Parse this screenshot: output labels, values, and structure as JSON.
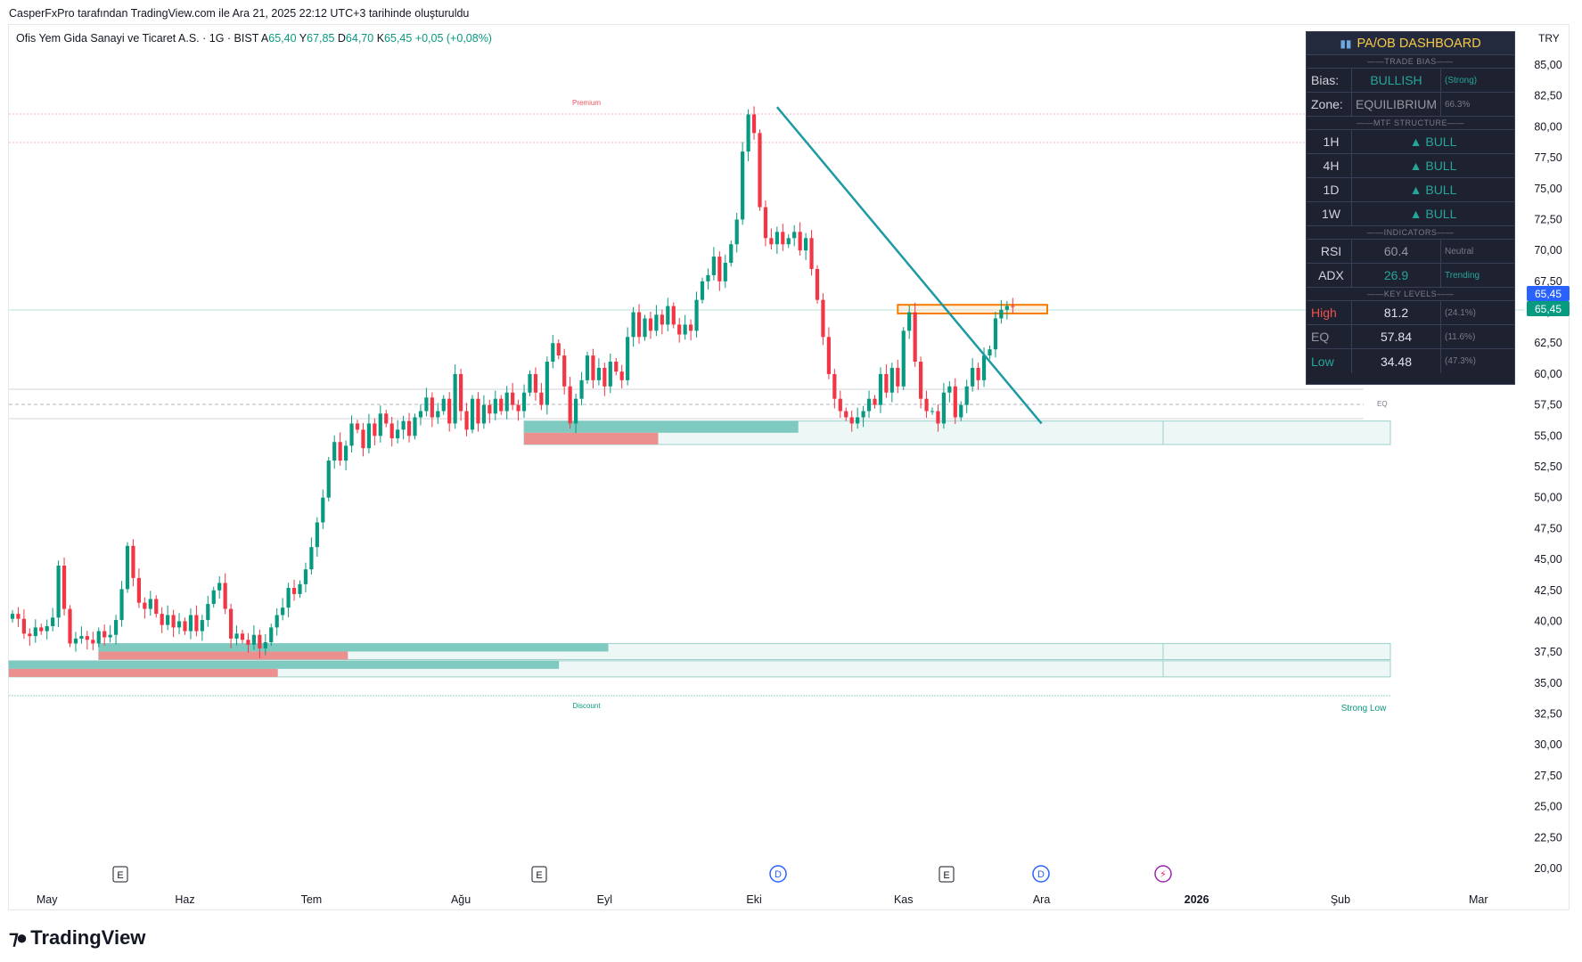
{
  "header": {
    "credit": "CasperFxPro tarafından TradingView.com ile Ara 21, 2025 22:12 UTC+3 tarihinde oluşturuldu"
  },
  "legend": {
    "name": "Ofis Yem Gida Sanayi ve Ticaret A.S. · 1G · BIST",
    "open_label": "A",
    "open": "65,40",
    "high_label": "Y",
    "high": "67,85",
    "low_label": "D",
    "low": "64,70",
    "close_label": "K",
    "close": "65,45",
    "change": "+0,05 (+0,08%)"
  },
  "currency": "TRY",
  "branding": {
    "logo": "TradingView"
  },
  "colors": {
    "up": "#089981",
    "down": "#f23645",
    "trendline": "#1b9aa3",
    "zone_teal": "#7fcac0",
    "zone_red": "#ec8f8f",
    "dashboard_bg": "#1e2130",
    "accent_gold": "#f7c948"
  },
  "chart_data": {
    "type": "candlestick",
    "title": "Ofis Yem Gida Sanayi ve Ticaret A.S. · 1G · BIST",
    "ylabel": "TRY",
    "ylim": [
      19,
      86
    ],
    "y_ticks": [
      "85,00",
      "82,50",
      "80,00",
      "77,50",
      "75,00",
      "72,50",
      "70,00",
      "67,50",
      "65,00",
      "62,50",
      "60,00",
      "57,50",
      "55,00",
      "52,50",
      "50,00",
      "47,50",
      "45,00",
      "42,50",
      "40,00",
      "37,50",
      "35,00",
      "32,50",
      "30,00",
      "27,50",
      "25,00",
      "22,50",
      "20,00"
    ],
    "x_labels": [
      {
        "label": "May",
        "bar": 6
      },
      {
        "label": "Haz",
        "bar": 30
      },
      {
        "label": "Tem",
        "bar": 52
      },
      {
        "label": "Ağu",
        "bar": 78
      },
      {
        "label": "Eyl",
        "bar": 103
      },
      {
        "label": "Eki",
        "bar": 129
      },
      {
        "label": "Kas",
        "bar": 155
      },
      {
        "label": "Ara",
        "bar": 179
      },
      {
        "label": "2026",
        "bar": 206,
        "bold": true
      },
      {
        "label": "Şub",
        "bar": 231
      },
      {
        "label": "Mar",
        "bar": 255
      }
    ],
    "closes": [
      40.6,
      40.2,
      39.0,
      38.8,
      39.5,
      39.2,
      39.6,
      40.3,
      44.5,
      41.0,
      38.2,
      38.6,
      38.8,
      38.5,
      38.2,
      39.2,
      38.7,
      38.9,
      40.1,
      42.6,
      46.1,
      43.5,
      41.5,
      41.0,
      41.8,
      40.6,
      39.7,
      40.5,
      39.5,
      40.0,
      39.2,
      40.5,
      39.2,
      40.1,
      41.4,
      42.5,
      43.1,
      41.0,
      38.6,
      39.0,
      38.5,
      38.1,
      38.9,
      37.8,
      38.3,
      39.5,
      40.5,
      41.1,
      42.7,
      42.2,
      43.0,
      44.2,
      46.0,
      48.0,
      50.0,
      53.0,
      54.5,
      53.0,
      54.2,
      56.0,
      55.5,
      54.0,
      56.0,
      55.0,
      56.8,
      56.0,
      54.8,
      55.5,
      56.2,
      55.0,
      56.5,
      57.0,
      58.1,
      56.5,
      57.0,
      58.0,
      56.0,
      60.0,
      57.0,
      55.5,
      58.0,
      56.0,
      57.5,
      56.8,
      58.0,
      57.0,
      58.5,
      57.5,
      57.0,
      58.5,
      60.0,
      58.5,
      57.5,
      61.0,
      62.5,
      61.5,
      59.0,
      56.0,
      58.0,
      59.5,
      61.5,
      59.5,
      60.5,
      59.0,
      61.0,
      60.2,
      59.5,
      63.0,
      65.0,
      63.0,
      64.5,
      63.5,
      64.8,
      64.0,
      65.5,
      64.0,
      63.2,
      64.0,
      63.5,
      66.0,
      67.5,
      68.0,
      69.5,
      67.5,
      69.0,
      70.5,
      72.5,
      78.0,
      81.0,
      79.5,
      73.5,
      71.0,
      70.5,
      71.5,
      70.5,
      71.0,
      71.5,
      70.0,
      71.0,
      68.5,
      66.0,
      63.0,
      60.0,
      58.0,
      57.0,
      56.5,
      56.0,
      56.5,
      57.0,
      58.0,
      57.5,
      60.0,
      58.5,
      60.5,
      59.0,
      63.5,
      65.0,
      61.0,
      58.0,
      57.0,
      57.0,
      56.0,
      58.5,
      59.0,
      56.5,
      57.5,
      59.0,
      60.5,
      59.5,
      61.5,
      62.0,
      64.5,
      65.2,
      65.5,
      65.45
    ],
    "trendline": {
      "from": {
        "bar": 133,
        "price": 81.6
      },
      "to": {
        "bar": 179,
        "price": 56.0
      }
    },
    "zones": [
      {
        "type": "order_block_bull",
        "from_bar": 89,
        "to_bar": 195,
        "top": 56.2,
        "bottom": 54.3
      },
      {
        "type": "order_block_bull",
        "from_bar": 15,
        "to_bar": 212,
        "top": 38.2,
        "bottom": 36.9
      },
      {
        "type": "order_block_bull",
        "from_bar": 0,
        "to_bar": 212,
        "top": 36.8,
        "bottom": 35.5
      },
      {
        "type": "breaker_zone",
        "from_bar": 154,
        "to_bar": 180,
        "top": 65.6,
        "bottom": 64.9
      }
    ],
    "levels": {
      "premium_label": "Premium",
      "eq_label": "EQ",
      "discount_label": "Discount",
      "strong_low_label": "Strong Low"
    },
    "price_labels": [
      "65,45",
      "65,45"
    ],
    "event_markers": [
      "E",
      "E",
      "D",
      "E",
      "D"
    ]
  },
  "dashboard": {
    "title": "PA/OB DASHBOARD",
    "sections": {
      "trade_bias": "TRADE BIAS",
      "mtf": "MTF STRUCTURE",
      "indicators": "INDICATORS",
      "key_levels": "KEY LEVELS"
    },
    "bias": {
      "label": "Bias:",
      "value": "BULLISH",
      "note": "(Strong)"
    },
    "zone": {
      "label": "Zone:",
      "value": "EQUILIBRIUM",
      "note": "66.3%"
    },
    "mtf": [
      {
        "tf": "1H",
        "value": "▲ BULL"
      },
      {
        "tf": "4H",
        "value": "▲ BULL"
      },
      {
        "tf": "1D",
        "value": "▲ BULL"
      },
      {
        "tf": "1W",
        "value": "▲ BULL"
      }
    ],
    "rsi": {
      "label": "RSI",
      "value": "60.4",
      "note": "Neutral"
    },
    "adx": {
      "label": "ADX",
      "value": "26.9",
      "note": "Trending"
    },
    "high": {
      "label": "High",
      "value": "81.2",
      "note": "(24.1%)"
    },
    "eq": {
      "label": "EQ",
      "value": "57.84",
      "note": "(11.6%)"
    },
    "low": {
      "label": "Low",
      "value": "34.48",
      "note": "(47.3%)"
    }
  }
}
